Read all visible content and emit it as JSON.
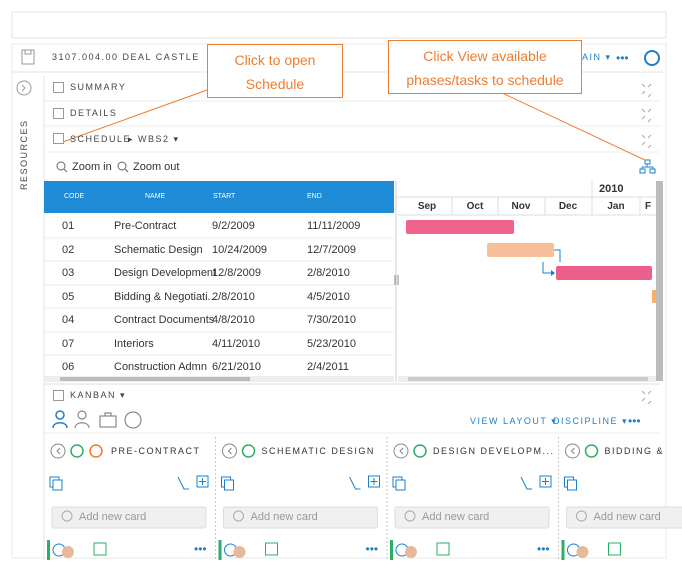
{
  "header": {
    "project": "3107.004.00 DEAL CASTLE",
    "view": "MAIN",
    "more": "•••"
  },
  "callouts": [
    "Click to open Schedule",
    "Click View available phases/tasks to schedule"
  ],
  "sidebar": {
    "label": "RESOURCES"
  },
  "sections": {
    "summary": "SUMMARY",
    "details": "DETAILS",
    "schedule": "SCHEDULE",
    "wbs": "WBS2"
  },
  "zoom": {
    "in": "Zoom in",
    "out": "Zoom out"
  },
  "table": {
    "columns": [
      "CODE",
      "NAME",
      "START",
      "END"
    ],
    "rows": [
      [
        "01",
        "Pre-Contract",
        "9/2/2009",
        "11/11/2009"
      ],
      [
        "02",
        "Schematic Design",
        "10/24/2009",
        "12/7/2009"
      ],
      [
        "03",
        "Design Development",
        "12/8/2009",
        "2/8/2010"
      ],
      [
        "05",
        "Bidding & Negotiati...",
        "2/8/2010",
        "4/5/2010"
      ],
      [
        "04",
        "Contract Documents",
        "4/8/2010",
        "7/30/2010"
      ],
      [
        "07",
        "Interiors",
        "4/11/2010",
        "5/23/2010"
      ],
      [
        "06",
        "Construction Admn",
        "6/21/2010",
        "2/4/2011"
      ]
    ]
  },
  "gantt": {
    "year": "2010",
    "months": [
      "Sep",
      "Oct",
      "Nov",
      "Dec",
      "Jan",
      "F"
    ]
  },
  "kanban": {
    "title": "KANBAN",
    "view_layout": "VIEW LAYOUT",
    "discipline": "DISCIPLINE",
    "more": "•••",
    "columns": [
      "PRE-CONTRACT",
      "SCHEMATIC DESIGN",
      "DESIGN DEVELOPM...",
      "BIDDING &"
    ],
    "add_card": "Add new card"
  }
}
